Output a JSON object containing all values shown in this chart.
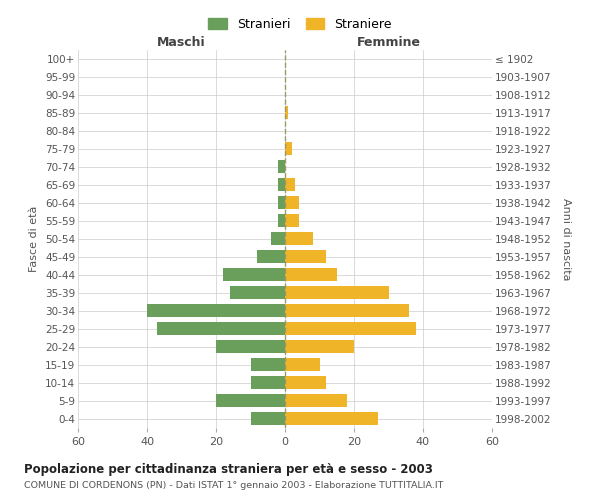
{
  "age_groups": [
    "0-4",
    "5-9",
    "10-14",
    "15-19",
    "20-24",
    "25-29",
    "30-34",
    "35-39",
    "40-44",
    "45-49",
    "50-54",
    "55-59",
    "60-64",
    "65-69",
    "70-74",
    "75-79",
    "80-84",
    "85-89",
    "90-94",
    "95-99",
    "100+"
  ],
  "birth_years": [
    "1998-2002",
    "1993-1997",
    "1988-1992",
    "1983-1987",
    "1978-1982",
    "1973-1977",
    "1968-1972",
    "1963-1967",
    "1958-1962",
    "1953-1957",
    "1948-1952",
    "1943-1947",
    "1938-1942",
    "1933-1937",
    "1928-1932",
    "1923-1927",
    "1918-1922",
    "1913-1917",
    "1908-1912",
    "1903-1907",
    "≤ 1902"
  ],
  "males": [
    10,
    20,
    10,
    10,
    20,
    37,
    40,
    16,
    18,
    8,
    4,
    2,
    2,
    2,
    2,
    0,
    0,
    0,
    0,
    0,
    0
  ],
  "females": [
    27,
    18,
    12,
    10,
    20,
    38,
    36,
    30,
    15,
    12,
    8,
    4,
    4,
    3,
    0,
    2,
    0,
    1,
    0,
    0,
    0
  ],
  "color_male": "#6a9e5b",
  "color_female": "#f0b429",
  "title": "Popolazione per cittadinanza straniera per età e sesso - 2003",
  "subtitle": "COMUNE DI CORDENONS (PN) - Dati ISTAT 1° gennaio 2003 - Elaborazione TUTTITALIA.IT",
  "xlabel_left": "Maschi",
  "xlabel_right": "Femmine",
  "ylabel_left": "Fasce di età",
  "ylabel_right": "Anni di nascita",
  "legend_male": "Stranieri",
  "legend_female": "Straniere",
  "xlim": 60,
  "background_color": "#ffffff",
  "grid_color": "#cccccc"
}
